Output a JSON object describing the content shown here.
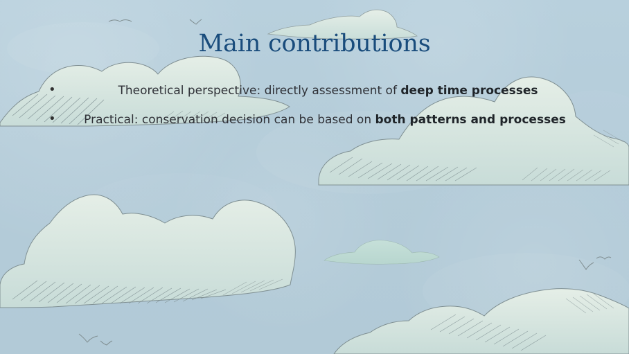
{
  "slide": {
    "title": "Main contributions",
    "bullets": [
      {
        "marker": "•",
        "regular": "Theoretical perspective: directly assessment of ",
        "bold": "deep time processes"
      },
      {
        "marker": "•",
        "regular": "Practical: conservation decision can be based on ",
        "bold": "both patterns and processes"
      }
    ]
  },
  "decorations": {
    "clouds": [
      "cloud-top-left",
      "cloud-top-center",
      "cloud-right",
      "cloud-left-bottom",
      "cloud-small-center",
      "cloud-bottom-right"
    ],
    "birds": [
      "bird-top-left",
      "bird-top-center",
      "bird-right",
      "bird-bottom-left"
    ]
  },
  "theme": {
    "sky": "#b7d0dd",
    "title_color": "#194c7c",
    "text_color": "#2f3137"
  }
}
